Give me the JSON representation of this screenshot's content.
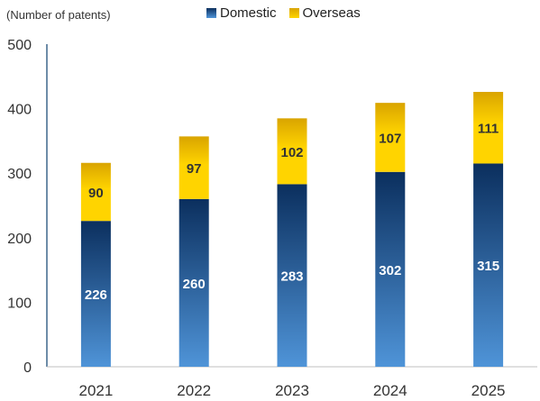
{
  "colors": {
    "domestic_top": "#0b2f5e",
    "domestic_bottom": "#4f94d8",
    "overseas_top": "#d9a400",
    "overseas_bottom": "#ffd400",
    "axis": "#1f4e79",
    "tick_text": "#333333",
    "value_light": "#ffffff",
    "value_dark": "#333333"
  },
  "chart_data": {
    "type": "bar",
    "stacked": true,
    "unit_label": "(Number of patents)",
    "categories": [
      "2021",
      "2022",
      "2023",
      "2024",
      "2025"
    ],
    "series": [
      {
        "name": "Domestic",
        "values": [
          226,
          260,
          283,
          302,
          315
        ]
      },
      {
        "name": "Overseas",
        "values": [
          90,
          97,
          102,
          107,
          111
        ]
      }
    ],
    "ylim": [
      0,
      500
    ],
    "yticks": [
      0,
      100,
      200,
      300,
      400,
      500
    ],
    "grid": false,
    "legend_position": "top-center"
  }
}
